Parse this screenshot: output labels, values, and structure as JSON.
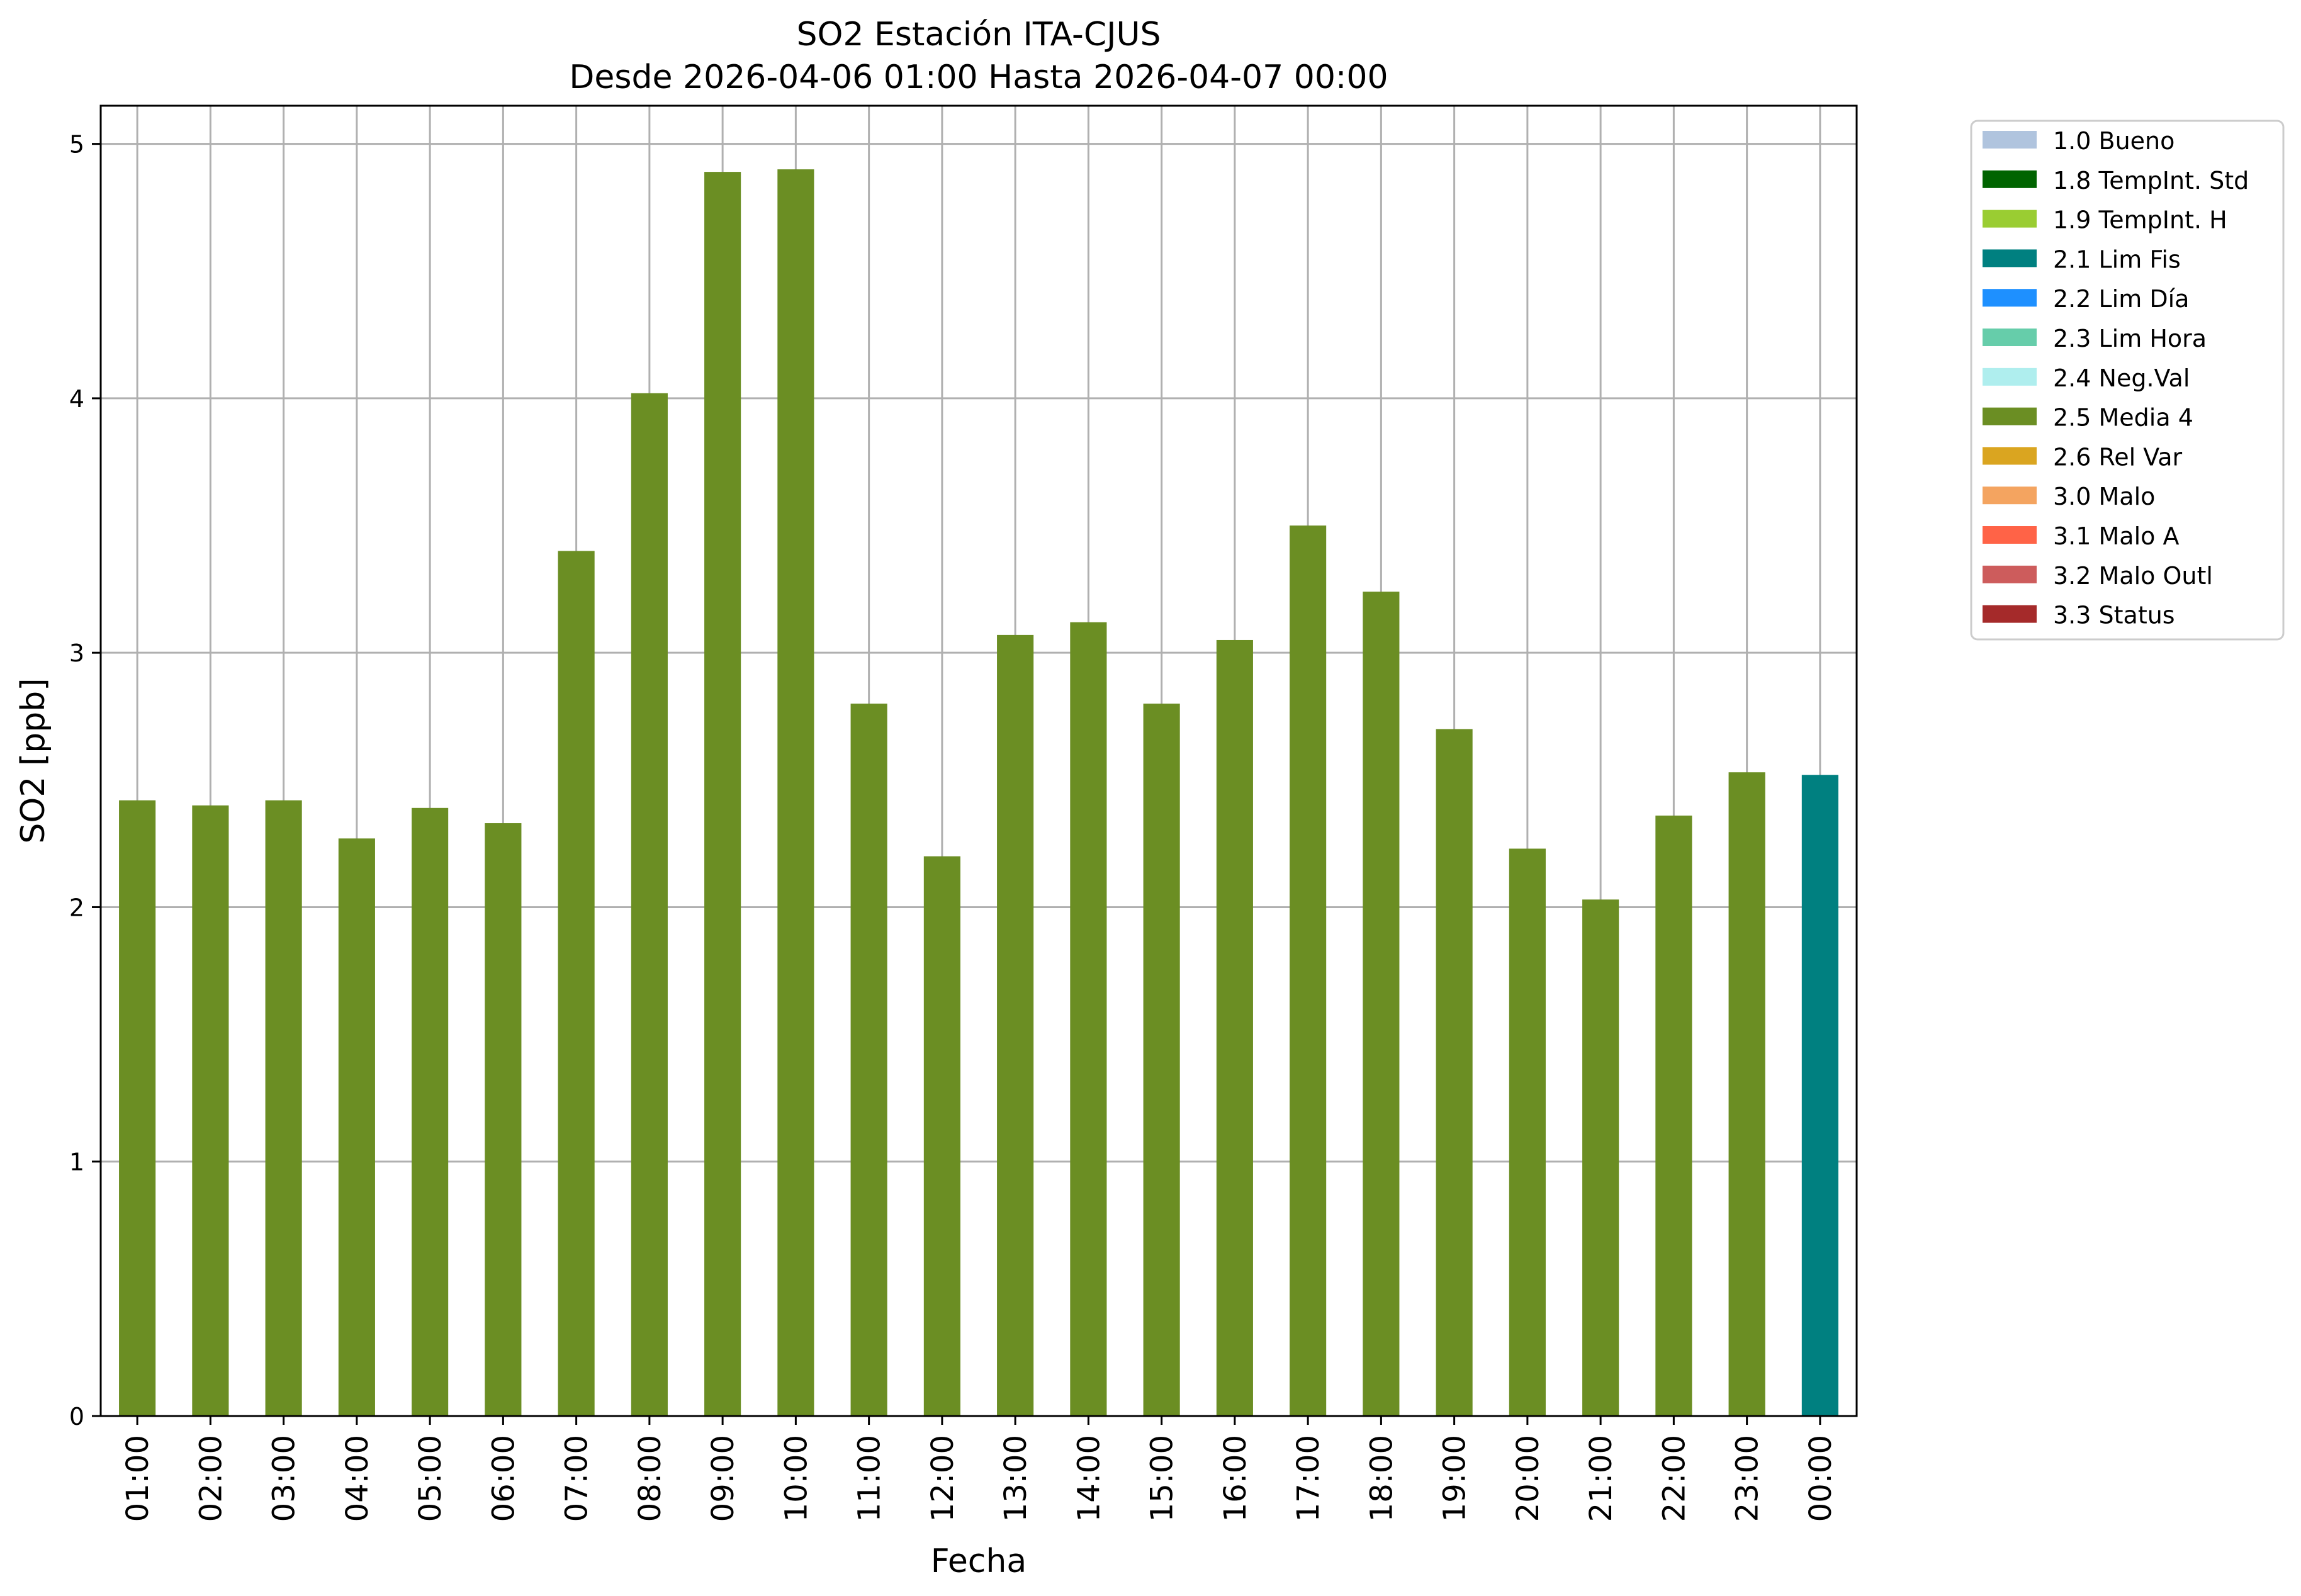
{
  "chart_data": {
    "type": "bar",
    "title": "SO2 Estación ITA-CJUS",
    "subtitle": "Desde 2026-04-06 01:00 Hasta 2026-04-07 00:00",
    "xlabel": "Fecha",
    "ylabel": "SO2 [ppb]",
    "ylim": [
      0,
      5.15
    ],
    "yticks": [
      "0",
      "1",
      "2",
      "3",
      "4",
      "5"
    ],
    "grid": true,
    "legend_position": "outside-top-right",
    "categories": [
      "01:00",
      "02:00",
      "03:00",
      "04:00",
      "05:00",
      "06:00",
      "07:00",
      "08:00",
      "09:00",
      "10:00",
      "11:00",
      "12:00",
      "13:00",
      "14:00",
      "15:00",
      "16:00",
      "17:00",
      "18:00",
      "19:00",
      "20:00",
      "21:00",
      "22:00",
      "23:00",
      "00:00"
    ],
    "values": [
      2.42,
      2.4,
      2.42,
      2.27,
      2.39,
      2.33,
      3.4,
      4.02,
      4.89,
      4.9,
      2.8,
      2.2,
      3.07,
      3.12,
      2.8,
      3.05,
      3.5,
      3.24,
      2.7,
      2.23,
      2.03,
      2.36,
      2.53,
      2.52
    ],
    "flags": [
      "2.5 Media 4",
      "2.5 Media 4",
      "2.5 Media 4",
      "2.5 Media 4",
      "2.5 Media 4",
      "2.5 Media 4",
      "2.5 Media 4",
      "2.5 Media 4",
      "2.5 Media 4",
      "2.5 Media 4",
      "2.5 Media 4",
      "2.5 Media 4",
      "2.5 Media 4",
      "2.5 Media 4",
      "2.5 Media 4",
      "2.5 Media 4",
      "2.5 Media 4",
      "2.5 Media 4",
      "2.5 Media 4",
      "2.5 Media 4",
      "2.5 Media 4",
      "2.5 Media 4",
      "2.5 Media 4",
      "2.1 Lim Fis"
    ],
    "legend": [
      {
        "label": "1.0 Bueno",
        "color": "#b0c4de"
      },
      {
        "label": "1.8 TempInt. Std",
        "color": "#006400"
      },
      {
        "label": "1.9 TempInt. H",
        "color": "#9acd32"
      },
      {
        "label": "2.1 Lim Fis",
        "color": "#008080"
      },
      {
        "label": "2.2 Lim Día",
        "color": "#1e90ff"
      },
      {
        "label": "2.3 Lim Hora",
        "color": "#66cdaa"
      },
      {
        "label": "2.4 Neg.Val",
        "color": "#afeeee"
      },
      {
        "label": "2.5 Media 4",
        "color": "#6b8e23"
      },
      {
        "label": "2.6 Rel Var",
        "color": "#daa520"
      },
      {
        "label": "3.0 Malo",
        "color": "#f4a460"
      },
      {
        "label": "3.1 Malo A",
        "color": "#ff6347"
      },
      {
        "label": "3.2 Malo Outl",
        "color": "#cd5c5c"
      },
      {
        "label": "3.3 Status",
        "color": "#a52a2a"
      }
    ]
  }
}
